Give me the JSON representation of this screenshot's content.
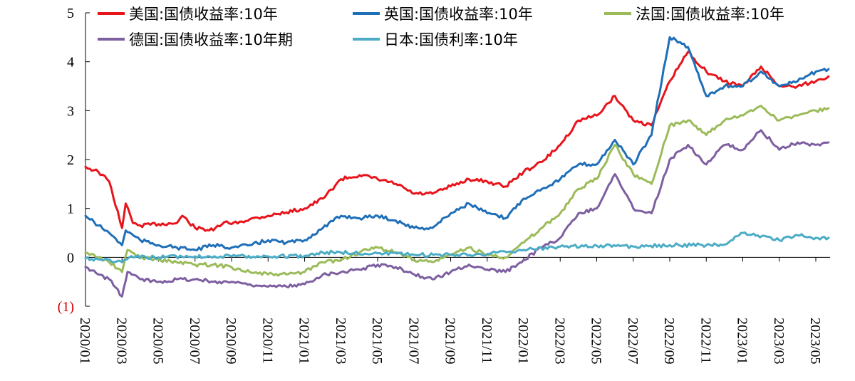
{
  "chart_data": {
    "type": "line",
    "title": "",
    "xlabel": "",
    "ylabel": "",
    "ylim": [
      -1,
      5
    ],
    "y_ticks": [
      {
        "value": 5,
        "label": "5"
      },
      {
        "value": 4,
        "label": "4"
      },
      {
        "value": 3,
        "label": "3"
      },
      {
        "value": 2,
        "label": "2"
      },
      {
        "value": 1,
        "label": "1"
      },
      {
        "value": 0,
        "label": "0"
      },
      {
        "value": -1,
        "label": "(1)"
      }
    ],
    "x_ticks": [
      "2020/01",
      "2020/03",
      "2020/05",
      "2020/07",
      "2020/09",
      "2020/11",
      "2021/01",
      "2021/03",
      "2021/05",
      "2021/07",
      "2021/09",
      "2021/11",
      "2022/01",
      "2022/03",
      "2022/05",
      "2022/07",
      "2022/09",
      "2022/11",
      "2023/01",
      "2023/03",
      "2023/05"
    ],
    "legend_position": "top",
    "grid": false,
    "series": [
      {
        "name": "美国:国债收益率:10年",
        "color": "#e8141b",
        "points": [
          [
            "2020/01",
            1.85
          ],
          [
            "2020/01.7",
            1.75
          ],
          [
            "2020/02.3",
            1.55
          ],
          [
            "2020/03",
            0.6
          ],
          [
            "2020/03.2",
            1.1
          ],
          [
            "2020/03.6",
            0.7
          ],
          [
            "2020/04",
            0.65
          ],
          [
            "2020/05",
            0.68
          ],
          [
            "2020/06",
            0.7
          ],
          [
            "2020/06.3",
            0.85
          ],
          [
            "2020/07",
            0.6
          ],
          [
            "2020/08",
            0.55
          ],
          [
            "2020/08.6",
            0.72
          ],
          [
            "2020/09",
            0.68
          ],
          [
            "2020/10",
            0.78
          ],
          [
            "2020/11",
            0.85
          ],
          [
            "2020/12",
            0.92
          ],
          [
            "2021/01",
            1.0
          ],
          [
            "2021/02",
            1.2
          ],
          [
            "2021/03",
            1.6
          ],
          [
            "2021/04",
            1.68
          ],
          [
            "2021/05",
            1.6
          ],
          [
            "2021/06",
            1.5
          ],
          [
            "2021/07",
            1.3
          ],
          [
            "2021/08",
            1.3
          ],
          [
            "2021/09",
            1.45
          ],
          [
            "2021/10",
            1.6
          ],
          [
            "2021/11",
            1.55
          ],
          [
            "2021/12",
            1.45
          ],
          [
            "2022/01",
            1.75
          ],
          [
            "2022/02",
            1.95
          ],
          [
            "2022/03",
            2.3
          ],
          [
            "2022/04",
            2.8
          ],
          [
            "2022/05",
            2.9
          ],
          [
            "2022/06",
            3.3
          ],
          [
            "2022/07",
            2.8
          ],
          [
            "2022/08",
            2.7
          ],
          [
            "2022/09",
            3.6
          ],
          [
            "2022/10",
            4.2
          ],
          [
            "2022/11",
            3.8
          ],
          [
            "2022/12",
            3.6
          ],
          [
            "2023/01",
            3.5
          ],
          [
            "2023/02",
            3.9
          ],
          [
            "2023/03",
            3.5
          ],
          [
            "2023/04",
            3.5
          ],
          [
            "2023/05",
            3.6
          ],
          [
            "2023/05.7",
            3.7
          ]
        ]
      },
      {
        "name": "英国:国债收益率:10年",
        "color": "#1f6fb8",
        "points": [
          [
            "2020/01",
            0.85
          ],
          [
            "2020/01.7",
            0.65
          ],
          [
            "2020/02.3",
            0.5
          ],
          [
            "2020/03",
            0.25
          ],
          [
            "2020/03.2",
            0.55
          ],
          [
            "2020/04",
            0.35
          ],
          [
            "2020/05",
            0.25
          ],
          [
            "2020/06",
            0.2
          ],
          [
            "2020/07",
            0.15
          ],
          [
            "2020/08",
            0.25
          ],
          [
            "2020/09",
            0.2
          ],
          [
            "2020/10",
            0.25
          ],
          [
            "2020/11",
            0.35
          ],
          [
            "2020/12",
            0.3
          ],
          [
            "2021/01",
            0.35
          ],
          [
            "2021/02",
            0.6
          ],
          [
            "2021/03",
            0.85
          ],
          [
            "2021/04",
            0.8
          ],
          [
            "2021/05",
            0.85
          ],
          [
            "2021/06",
            0.75
          ],
          [
            "2021/07",
            0.6
          ],
          [
            "2021/08",
            0.6
          ],
          [
            "2021/09",
            0.9
          ],
          [
            "2021/10",
            1.1
          ],
          [
            "2021/11",
            0.9
          ],
          [
            "2021/12",
            0.8
          ],
          [
            "2022/01",
            1.2
          ],
          [
            "2022/02",
            1.4
          ],
          [
            "2022/03",
            1.6
          ],
          [
            "2022/04",
            1.9
          ],
          [
            "2022/05",
            1.9
          ],
          [
            "2022/06",
            2.4
          ],
          [
            "2022/07",
            1.9
          ],
          [
            "2022/08",
            2.5
          ],
          [
            "2022/09",
            4.5
          ],
          [
            "2022/10",
            4.3
          ],
          [
            "2022/11",
            3.3
          ],
          [
            "2022/12",
            3.5
          ],
          [
            "2023/01",
            3.5
          ],
          [
            "2023/02",
            3.8
          ],
          [
            "2023/03",
            3.5
          ],
          [
            "2023/04",
            3.6
          ],
          [
            "2023/05",
            3.8
          ],
          [
            "2023/05.7",
            3.85
          ]
        ]
      },
      {
        "name": "法国:国债收益率:10年",
        "color": "#9bbb59",
        "points": [
          [
            "2020/01",
            0.1
          ],
          [
            "2020/01.7",
            0.0
          ],
          [
            "2020/02.3",
            -0.1
          ],
          [
            "2020/03",
            -0.3
          ],
          [
            "2020/03.3",
            0.15
          ],
          [
            "2020/04",
            0.0
          ],
          [
            "2020/05",
            -0.05
          ],
          [
            "2020/06",
            -0.1
          ],
          [
            "2020/07",
            -0.15
          ],
          [
            "2020/08",
            -0.15
          ],
          [
            "2020/09",
            -0.2
          ],
          [
            "2020/10",
            -0.3
          ],
          [
            "2020/11",
            -0.35
          ],
          [
            "2020/12",
            -0.35
          ],
          [
            "2021/01",
            -0.3
          ],
          [
            "2021/02",
            -0.1
          ],
          [
            "2021/03",
            -0.05
          ],
          [
            "2021/04",
            0.1
          ],
          [
            "2021/05",
            0.2
          ],
          [
            "2021/06",
            0.1
          ],
          [
            "2021/07",
            -0.05
          ],
          [
            "2021/08",
            -0.1
          ],
          [
            "2021/09",
            0.05
          ],
          [
            "2021/10",
            0.2
          ],
          [
            "2021/11",
            0.05
          ],
          [
            "2021/12",
            0.0
          ],
          [
            "2022/01",
            0.3
          ],
          [
            "2022/02",
            0.6
          ],
          [
            "2022/03",
            0.9
          ],
          [
            "2022/04",
            1.4
          ],
          [
            "2022/05",
            1.6
          ],
          [
            "2022/06",
            2.3
          ],
          [
            "2022/07",
            1.7
          ],
          [
            "2022/08",
            1.5
          ],
          [
            "2022/09",
            2.7
          ],
          [
            "2022/10",
            2.8
          ],
          [
            "2022/11",
            2.5
          ],
          [
            "2022/12",
            2.8
          ],
          [
            "2023/01",
            2.9
          ],
          [
            "2023/02",
            3.1
          ],
          [
            "2023/03",
            2.8
          ],
          [
            "2023/04",
            2.9
          ],
          [
            "2023/05",
            3.0
          ],
          [
            "2023/05.7",
            3.05
          ]
        ]
      },
      {
        "name": "德国:国债收益率:10年期",
        "color": "#7d5fa0",
        "points": [
          [
            "2020/01",
            -0.2
          ],
          [
            "2020/01.7",
            -0.35
          ],
          [
            "2020/02.3",
            -0.45
          ],
          [
            "2020/03",
            -0.8
          ],
          [
            "2020/03.3",
            -0.3
          ],
          [
            "2020/04",
            -0.45
          ],
          [
            "2020/05",
            -0.5
          ],
          [
            "2020/06",
            -0.45
          ],
          [
            "2020/07",
            -0.45
          ],
          [
            "2020/08",
            -0.5
          ],
          [
            "2020/09",
            -0.5
          ],
          [
            "2020/10",
            -0.55
          ],
          [
            "2020/11",
            -0.6
          ],
          [
            "2020/12",
            -0.6
          ],
          [
            "2021/01",
            -0.55
          ],
          [
            "2021/02",
            -0.35
          ],
          [
            "2021/03",
            -0.3
          ],
          [
            "2021/04",
            -0.25
          ],
          [
            "2021/05",
            -0.15
          ],
          [
            "2021/06",
            -0.2
          ],
          [
            "2021/07",
            -0.35
          ],
          [
            "2021/08",
            -0.45
          ],
          [
            "2021/09",
            -0.3
          ],
          [
            "2021/10",
            -0.15
          ],
          [
            "2021/11",
            -0.25
          ],
          [
            "2021/12",
            -0.3
          ],
          [
            "2022/01",
            -0.05
          ],
          [
            "2022/02",
            0.2
          ],
          [
            "2022/03",
            0.4
          ],
          [
            "2022/04",
            0.9
          ],
          [
            "2022/05",
            1.0
          ],
          [
            "2022/06",
            1.7
          ],
          [
            "2022/07",
            1.0
          ],
          [
            "2022/08",
            0.9
          ],
          [
            "2022/09",
            2.0
          ],
          [
            "2022/10",
            2.3
          ],
          [
            "2022/11",
            1.9
          ],
          [
            "2022/12",
            2.3
          ],
          [
            "2023/01",
            2.2
          ],
          [
            "2023/02",
            2.6
          ],
          [
            "2023/03",
            2.2
          ],
          [
            "2023/04",
            2.35
          ],
          [
            "2023/05",
            2.3
          ],
          [
            "2023/05.7",
            2.35
          ]
        ]
      },
      {
        "name": "日本:国债利率:10年",
        "color": "#4bacc6",
        "points": [
          [
            "2020/01",
            -0.02
          ],
          [
            "2020/02",
            -0.05
          ],
          [
            "2020/03",
            -0.1
          ],
          [
            "2020/03.4",
            0.0
          ],
          [
            "2020/05",
            0.0
          ],
          [
            "2020/07",
            0.02
          ],
          [
            "2020/09",
            0.02
          ],
          [
            "2020/11",
            0.02
          ],
          [
            "2021/01",
            0.03
          ],
          [
            "2021/02",
            0.1
          ],
          [
            "2021/03",
            0.1
          ],
          [
            "2021/05",
            0.08
          ],
          [
            "2021/07",
            0.05
          ],
          [
            "2021/09",
            0.05
          ],
          [
            "2021/11",
            0.07
          ],
          [
            "2022/01",
            0.15
          ],
          [
            "2022/03",
            0.22
          ],
          [
            "2022/05",
            0.24
          ],
          [
            "2022/07",
            0.22
          ],
          [
            "2022/09",
            0.25
          ],
          [
            "2022/11",
            0.25
          ],
          [
            "2022/12",
            0.26
          ],
          [
            "2022/12.8",
            0.45
          ],
          [
            "2023/01",
            0.5
          ],
          [
            "2023/03",
            0.35
          ],
          [
            "2023/04",
            0.45
          ],
          [
            "2023/05",
            0.4
          ],
          [
            "2023/05.7",
            0.4
          ]
        ]
      }
    ]
  }
}
